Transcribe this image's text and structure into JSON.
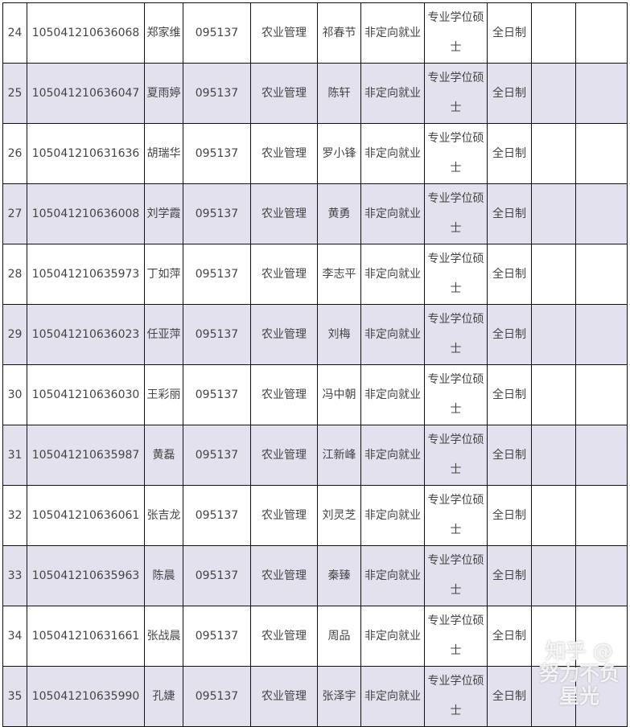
{
  "rows": [
    {
      "no": "24",
      "id": "105041210636068",
      "name": "郑家维",
      "code": "095137",
      "major": "农业管理",
      "advisor": "祁春节",
      "type": "非定向就业",
      "degree": "专业学位硕士",
      "mode": "全日制",
      "c10": "",
      "c11": ""
    },
    {
      "no": "25",
      "id": "105041210636047",
      "name": "夏雨婷",
      "code": "095137",
      "major": "农业管理",
      "advisor": "陈轩",
      "type": "非定向就业",
      "degree": "专业学位硕士",
      "mode": "全日制",
      "c10": "",
      "c11": ""
    },
    {
      "no": "26",
      "id": "105041210631636",
      "name": "胡瑞华",
      "code": "095137",
      "major": "农业管理",
      "advisor": "罗小锋",
      "type": "非定向就业",
      "degree": "专业学位硕士",
      "mode": "全日制",
      "c10": "",
      "c11": ""
    },
    {
      "no": "27",
      "id": "105041210636008",
      "name": "刘学霞",
      "code": "095137",
      "major": "农业管理",
      "advisor": "黄勇",
      "type": "非定向就业",
      "degree": "专业学位硕士",
      "mode": "全日制",
      "c10": "",
      "c11": ""
    },
    {
      "no": "28",
      "id": "105041210635973",
      "name": "丁如萍",
      "code": "095137",
      "major": "农业管理",
      "advisor": "李志平",
      "type": "非定向就业",
      "degree": "专业学位硕士",
      "mode": "全日制",
      "c10": "",
      "c11": ""
    },
    {
      "no": "29",
      "id": "105041210636023",
      "name": "任亚萍",
      "code": "095137",
      "major": "农业管理",
      "advisor": "刘梅",
      "type": "非定向就业",
      "degree": "专业学位硕士",
      "mode": "全日制",
      "c10": "",
      "c11": ""
    },
    {
      "no": "30",
      "id": "105041210636030",
      "name": "王彩丽",
      "code": "095137",
      "major": "农业管理",
      "advisor": "冯中朝",
      "type": "非定向就业",
      "degree": "专业学位硕士",
      "mode": "全日制",
      "c10": "",
      "c11": ""
    },
    {
      "no": "31",
      "id": "105041210635987",
      "name": "黄磊",
      "code": "095137",
      "major": "农业管理",
      "advisor": "江新峰",
      "type": "非定向就业",
      "degree": "专业学位硕士",
      "mode": "全日制",
      "c10": "",
      "c11": ""
    },
    {
      "no": "32",
      "id": "105041210636061",
      "name": "张吉龙",
      "code": "095137",
      "major": "农业管理",
      "advisor": "刘灵芝",
      "type": "非定向就业",
      "degree": "专业学位硕士",
      "mode": "全日制",
      "c10": "",
      "c11": ""
    },
    {
      "no": "33",
      "id": "105041210635963",
      "name": "陈晨",
      "code": "095137",
      "major": "农业管理",
      "advisor": "秦臻",
      "type": "非定向就业",
      "degree": "专业学位硕士",
      "mode": "全日制",
      "c10": "",
      "c11": ""
    },
    {
      "no": "34",
      "id": "105041210631661",
      "name": "张战晨",
      "code": "095137",
      "major": "农业管理",
      "advisor": "周品",
      "type": "非定向就业",
      "degree": "专业学位硕士",
      "mode": "全日制",
      "c10": "",
      "c11": ""
    },
    {
      "no": "35",
      "id": "105041210635990",
      "name": "孔婕",
      "code": "095137",
      "major": "农业管理",
      "advisor": "张泽宇",
      "type": "非定向就业",
      "degree": "专业学位硕士",
      "mode": "全日制",
      "c10": "",
      "c11": ""
    }
  ],
  "watermark": "知乎 @努力不负星光",
  "colors": {
    "alt_row": "#e3e1ee",
    "border": "#111111",
    "text": "#444444"
  }
}
